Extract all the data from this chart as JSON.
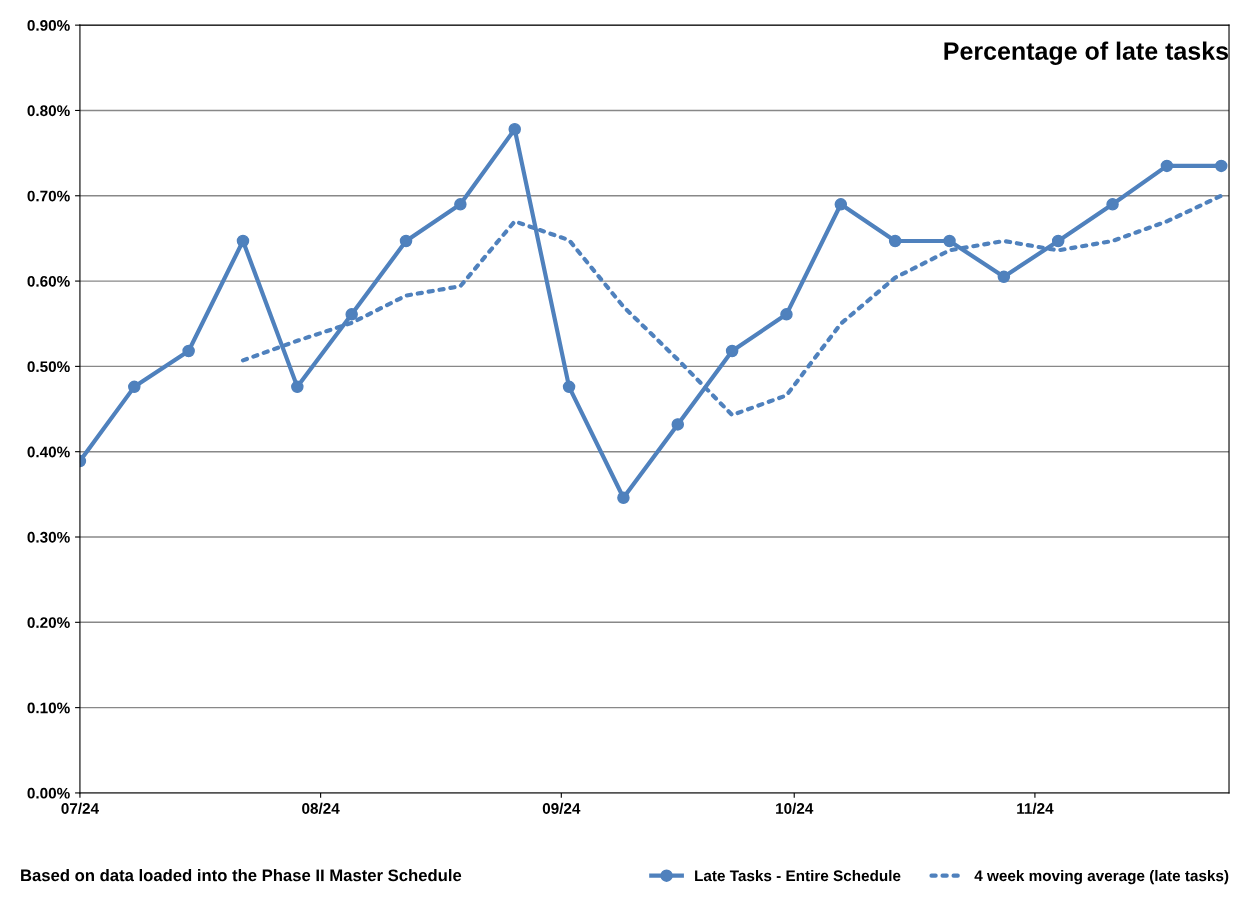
{
  "chart_data": {
    "type": "line",
    "title": "Percentage of late tasks",
    "x": [
      "2024-07-01",
      "2024-07-08",
      "2024-07-15",
      "2024-07-22",
      "2024-07-29",
      "2024-08-05",
      "2024-08-12",
      "2024-08-19",
      "2024-08-26",
      "2024-09-02",
      "2024-09-09",
      "2024-09-16",
      "2024-09-23",
      "2024-09-30",
      "2024-10-07",
      "2024-10-14",
      "2024-10-21",
      "2024-10-28",
      "2024-11-04",
      "2024-11-11",
      "2024-11-18",
      "2024-11-25"
    ],
    "series": [
      {
        "name": "Late Tasks - Entire Schedule",
        "color": "#4f81bd",
        "marker": "circle",
        "line_style": "solid",
        "values": [
          0.389,
          0.476,
          0.518,
          0.647,
          0.476,
          0.561,
          0.647,
          0.69,
          0.778,
          0.476,
          0.346,
          0.432,
          0.518,
          0.561,
          0.69,
          0.647,
          0.647,
          0.605,
          0.647,
          0.69,
          0.735,
          0.735
        ]
      },
      {
        "name": "4 week moving average (late tasks)",
        "color": "#4f81bd",
        "marker": "none",
        "line_style": "dotted",
        "values": [
          null,
          null,
          null,
          0.507,
          0.53,
          0.551,
          0.583,
          0.594,
          0.67,
          0.648,
          0.57,
          0.508,
          0.443,
          0.466,
          0.55,
          0.604,
          0.636,
          0.647,
          0.636,
          0.647,
          0.67,
          0.7
        ]
      }
    ],
    "xlim": [
      "2024-07-01",
      "2024-11-26"
    ],
    "xticks": [
      {
        "value": "2024-07-01",
        "label": "07/24"
      },
      {
        "value": "2024-08-01",
        "label": "08/24"
      },
      {
        "value": "2024-09-01",
        "label": "09/24"
      },
      {
        "value": "2024-10-01",
        "label": "10/24"
      },
      {
        "value": "2024-11-01",
        "label": "11/24"
      }
    ],
    "ylim": [
      0,
      0.9
    ],
    "yticks": [
      {
        "value": 0,
        "label": "0.00%"
      },
      {
        "value": 0.1,
        "label": "0.10%"
      },
      {
        "value": 0.2,
        "label": "0.20%"
      },
      {
        "value": 0.3,
        "label": "0.30%"
      },
      {
        "value": 0.4,
        "label": "0.40%"
      },
      {
        "value": 0.5,
        "label": "0.50%"
      },
      {
        "value": 0.6,
        "label": "0.60%"
      },
      {
        "value": 0.7,
        "label": "0.70%"
      },
      {
        "value": 0.8,
        "label": "0.80%"
      },
      {
        "value": 0.9,
        "label": "0.90%"
      }
    ],
    "grid": "y",
    "legend": "bottom right",
    "annotations": [
      "Based on data loaded into the Phase II Master Schedule"
    ]
  }
}
